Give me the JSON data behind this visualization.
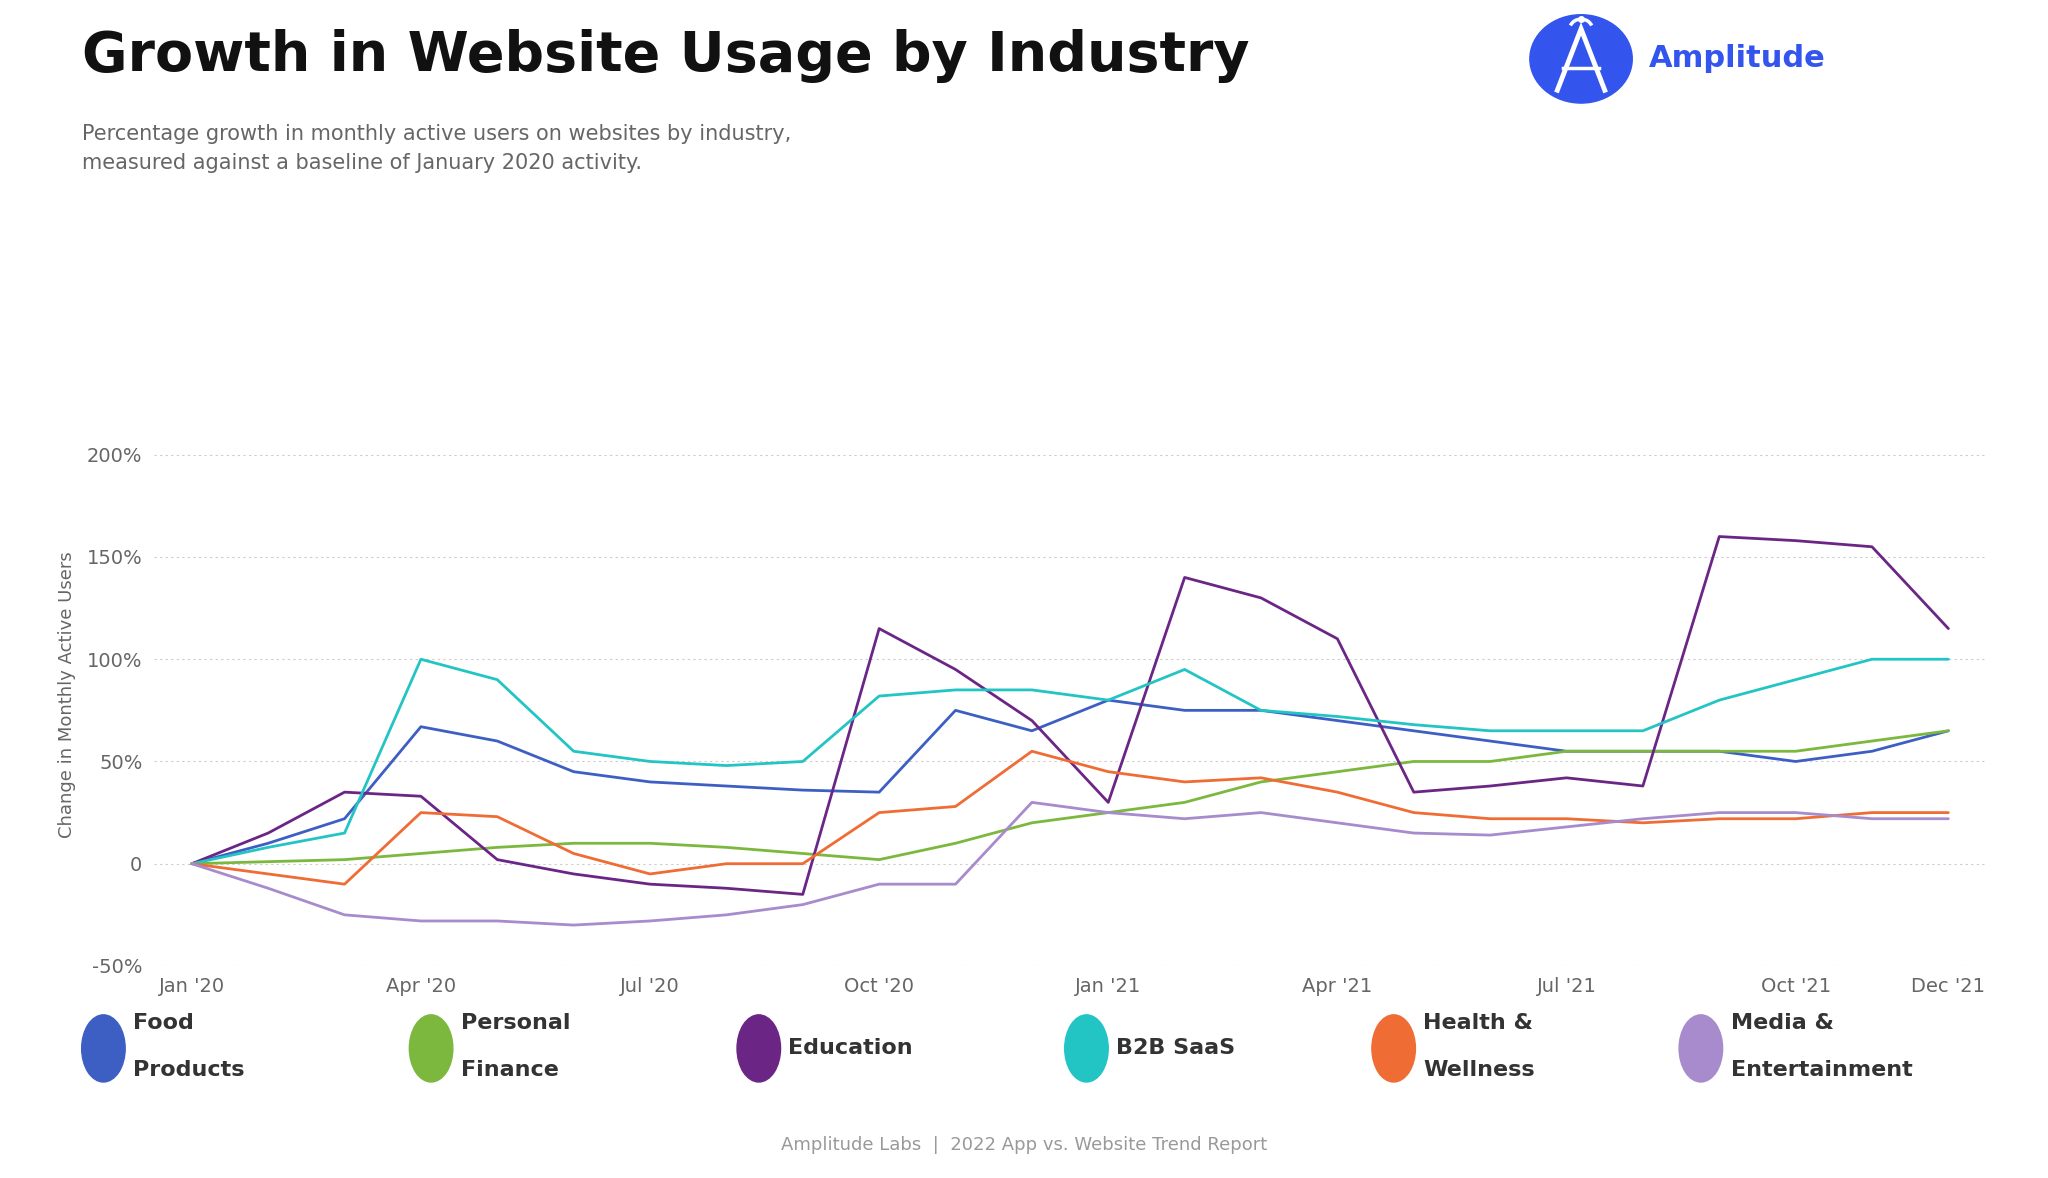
{
  "title": "Growth in Website Usage by Industry",
  "subtitle": "Percentage growth in monthly active users on websites by industry,\nmeasured against a baseline of January 2020 activity.",
  "ylabel": "Change in Monthly Active Users",
  "footer": "Amplitude Labs  |  2022 App vs. Website Trend Report",
  "background_color": "#ffffff",
  "x_labels": [
    "Jan '20",
    "Apr '20",
    "Jul '20",
    "Oct '20",
    "Jan '21",
    "Apr '21",
    "Jul '21",
    "Oct '21",
    "Dec '21"
  ],
  "x_indices": [
    0,
    3,
    6,
    9,
    12,
    15,
    18,
    21,
    23
  ],
  "series": {
    "Food Products": {
      "color": "#3D5FC4",
      "data_x": [
        0,
        1,
        2,
        3,
        4,
        5,
        6,
        7,
        8,
        9,
        10,
        11,
        12,
        13,
        14,
        15,
        16,
        17,
        18,
        19,
        20,
        21,
        22,
        23
      ],
      "data_y": [
        0,
        10,
        22,
        67,
        60,
        45,
        40,
        38,
        36,
        35,
        75,
        65,
        80,
        75,
        75,
        70,
        65,
        60,
        55,
        55,
        55,
        50,
        55,
        65
      ]
    },
    "Personal Finance": {
      "color": "#7CB83E",
      "data_x": [
        0,
        1,
        2,
        3,
        4,
        5,
        6,
        7,
        8,
        9,
        10,
        11,
        12,
        13,
        14,
        15,
        16,
        17,
        18,
        19,
        20,
        21,
        22,
        23
      ],
      "data_y": [
        0,
        1,
        2,
        5,
        8,
        10,
        10,
        8,
        5,
        2,
        10,
        20,
        25,
        30,
        40,
        45,
        50,
        50,
        55,
        55,
        55,
        55,
        60,
        65
      ]
    },
    "Education": {
      "color": "#6B2685",
      "data_x": [
        0,
        1,
        2,
        3,
        4,
        5,
        6,
        7,
        8,
        9,
        10,
        11,
        12,
        13,
        14,
        15,
        16,
        17,
        18,
        19,
        20,
        21,
        22,
        23
      ],
      "data_y": [
        0,
        15,
        35,
        33,
        2,
        -5,
        -10,
        -12,
        -15,
        115,
        95,
        70,
        30,
        140,
        130,
        110,
        35,
        38,
        42,
        38,
        160,
        158,
        155,
        115
      ]
    },
    "B2B SaaS": {
      "color": "#23C4C4",
      "data_x": [
        0,
        1,
        2,
        3,
        4,
        5,
        6,
        7,
        8,
        9,
        10,
        11,
        12,
        13,
        14,
        15,
        16,
        17,
        18,
        19,
        20,
        21,
        22,
        23
      ],
      "data_y": [
        0,
        8,
        15,
        100,
        90,
        55,
        50,
        48,
        50,
        82,
        85,
        85,
        80,
        95,
        75,
        72,
        68,
        65,
        65,
        65,
        80,
        90,
        100,
        100
      ]
    },
    "Health & Wellness": {
      "color": "#EF6C35",
      "data_x": [
        0,
        1,
        2,
        3,
        4,
        5,
        6,
        7,
        8,
        9,
        10,
        11,
        12,
        13,
        14,
        15,
        16,
        17,
        18,
        19,
        20,
        21,
        22,
        23
      ],
      "data_y": [
        0,
        -5,
        -10,
        25,
        23,
        5,
        -5,
        0,
        0,
        25,
        28,
        55,
        45,
        40,
        42,
        35,
        25,
        22,
        22,
        20,
        22,
        22,
        25,
        25
      ]
    },
    "Media & Entertainment": {
      "color": "#A78BCC",
      "data_x": [
        0,
        1,
        2,
        3,
        4,
        5,
        6,
        7,
        8,
        9,
        10,
        11,
        12,
        13,
        14,
        15,
        16,
        17,
        18,
        19,
        20,
        21,
        22,
        23
      ],
      "data_y": [
        0,
        -12,
        -25,
        -28,
        -28,
        -30,
        -28,
        -25,
        -20,
        -10,
        -10,
        30,
        25,
        22,
        25,
        20,
        15,
        14,
        18,
        22,
        25,
        25,
        22,
        22
      ]
    }
  },
  "ylim": [
    -50,
    215
  ],
  "yticks": [
    -50,
    0,
    50,
    100,
    150,
    200
  ],
  "ytick_labels": [
    "-50%",
    "0",
    "50%",
    "100%",
    "150%",
    "200%"
  ],
  "title_fontsize": 40,
  "subtitle_fontsize": 15,
  "axis_fontsize": 13,
  "tick_fontsize": 14,
  "legend_fontsize": 16,
  "footer_fontsize": 13,
  "amplitude_color": "#3355EE",
  "amplitude_text_color": "#3355EE"
}
